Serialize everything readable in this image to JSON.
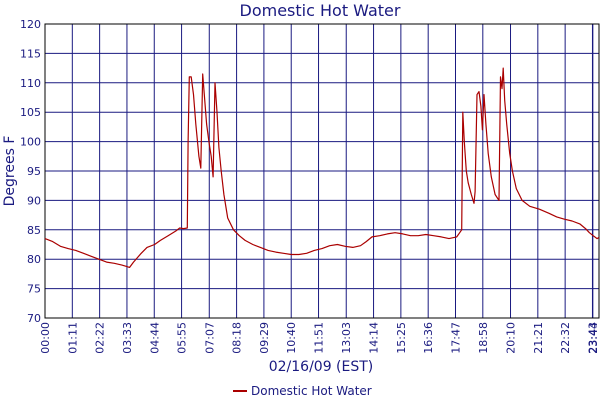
{
  "chart_data": {
    "type": "line",
    "title": "Domestic Hot Water",
    "xlabel": "02/16/09 (EST)",
    "ylabel": "Degrees F",
    "ylim": [
      70,
      120
    ],
    "xlim_minutes": [
      0,
      1440
    ],
    "y_ticks": [
      "70",
      "75",
      "80",
      "85",
      "90",
      "95",
      "100",
      "105",
      "110",
      "115",
      "120"
    ],
    "x_ticks": [
      {
        "label": "00:00",
        "minute": 0
      },
      {
        "label": "01:11",
        "minute": 71
      },
      {
        "label": "02:22",
        "minute": 142
      },
      {
        "label": "03:33",
        "minute": 213
      },
      {
        "label": "04:44",
        "minute": 284
      },
      {
        "label": "05:55",
        "minute": 355
      },
      {
        "label": "07:07",
        "minute": 427
      },
      {
        "label": "08:18",
        "minute": 498
      },
      {
        "label": "09:29",
        "minute": 569
      },
      {
        "label": "10:40",
        "minute": 640
      },
      {
        "label": "11:51",
        "minute": 711
      },
      {
        "label": "13:03",
        "minute": 783
      },
      {
        "label": "14:14",
        "minute": 854
      },
      {
        "label": "15:25",
        "minute": 925
      },
      {
        "label": "16:36",
        "minute": 996
      },
      {
        "label": "17:47",
        "minute": 1067
      },
      {
        "label": "18:58",
        "minute": 1138
      },
      {
        "label": "20:10",
        "minute": 1210
      },
      {
        "label": "21:21",
        "minute": 1281
      },
      {
        "label": "22:32",
        "minute": 1352
      },
      {
        "label": "23:43",
        "minute": 1423
      },
      {
        "label": "23:44",
        "minute": 1424
      }
    ],
    "grid": true,
    "legend": "bottom-center",
    "series": [
      {
        "name": "Domestic Hot Water",
        "color": "#aa0000",
        "points": [
          [
            0,
            83.5
          ],
          [
            20,
            83.0
          ],
          [
            40,
            82.2
          ],
          [
            60,
            81.8
          ],
          [
            80,
            81.5
          ],
          [
            100,
            81.0
          ],
          [
            120,
            80.5
          ],
          [
            140,
            80.0
          ],
          [
            160,
            79.5
          ],
          [
            180,
            79.3
          ],
          [
            200,
            79.0
          ],
          [
            220,
            78.6
          ],
          [
            230,
            79.5
          ],
          [
            250,
            81.0
          ],
          [
            265,
            82.0
          ],
          [
            285,
            82.5
          ],
          [
            300,
            83.2
          ],
          [
            320,
            84.0
          ],
          [
            340,
            84.8
          ],
          [
            350,
            85.3
          ],
          [
            360,
            85.2
          ],
          [
            370,
            85.3
          ],
          [
            372,
            100.0
          ],
          [
            375,
            111.0
          ],
          [
            380,
            111.0
          ],
          [
            386,
            108.0
          ],
          [
            392,
            103.0
          ],
          [
            400,
            97.5
          ],
          [
            405,
            95.5
          ],
          [
            410,
            111.5
          ],
          [
            414,
            108.0
          ],
          [
            420,
            103.0
          ],
          [
            426,
            100.0
          ],
          [
            432,
            97.5
          ],
          [
            437,
            94.0
          ],
          [
            442,
            110.0
          ],
          [
            447,
            105.0
          ],
          [
            452,
            99.0
          ],
          [
            458,
            95.0
          ],
          [
            465,
            91.0
          ],
          [
            475,
            87.0
          ],
          [
            490,
            85.0
          ],
          [
            505,
            84.0
          ],
          [
            520,
            83.2
          ],
          [
            540,
            82.5
          ],
          [
            560,
            82.0
          ],
          [
            580,
            81.5
          ],
          [
            600,
            81.2
          ],
          [
            620,
            81.0
          ],
          [
            640,
            80.8
          ],
          [
            660,
            80.8
          ],
          [
            680,
            81.0
          ],
          [
            700,
            81.5
          ],
          [
            720,
            81.8
          ],
          [
            740,
            82.3
          ],
          [
            760,
            82.5
          ],
          [
            780,
            82.2
          ],
          [
            800,
            82.0
          ],
          [
            820,
            82.3
          ],
          [
            835,
            83.0
          ],
          [
            850,
            83.8
          ],
          [
            870,
            84.0
          ],
          [
            890,
            84.3
          ],
          [
            910,
            84.5
          ],
          [
            930,
            84.3
          ],
          [
            950,
            84.0
          ],
          [
            970,
            84.0
          ],
          [
            990,
            84.2
          ],
          [
            1010,
            84.0
          ],
          [
            1030,
            83.8
          ],
          [
            1050,
            83.5
          ],
          [
            1070,
            83.8
          ],
          [
            1078,
            84.5
          ],
          [
            1083,
            85.0
          ],
          [
            1086,
            105.0
          ],
          [
            1090,
            100.0
          ],
          [
            1095,
            95.0
          ],
          [
            1100,
            93.0
          ],
          [
            1108,
            91.0
          ],
          [
            1115,
            89.5
          ],
          [
            1118,
            91.5
          ],
          [
            1123,
            108.0
          ],
          [
            1128,
            108.5
          ],
          [
            1133,
            106.0
          ],
          [
            1137,
            102.0
          ],
          [
            1141,
            108.0
          ],
          [
            1146,
            103.0
          ],
          [
            1152,
            98.0
          ],
          [
            1160,
            94.0
          ],
          [
            1170,
            91.0
          ],
          [
            1180,
            90.0
          ],
          [
            1184,
            111.0
          ],
          [
            1188,
            109.0
          ],
          [
            1191,
            112.5
          ],
          [
            1195,
            107.0
          ],
          [
            1200,
            103.0
          ],
          [
            1208,
            98.0
          ],
          [
            1215,
            95.0
          ],
          [
            1225,
            92.0
          ],
          [
            1240,
            90.0
          ],
          [
            1260,
            89.0
          ],
          [
            1285,
            88.5
          ],
          [
            1310,
            87.8
          ],
          [
            1330,
            87.2
          ],
          [
            1350,
            86.8
          ],
          [
            1370,
            86.5
          ],
          [
            1390,
            86.0
          ],
          [
            1405,
            85.2
          ],
          [
            1415,
            84.5
          ],
          [
            1425,
            84.0
          ],
          [
            1435,
            83.5
          ],
          [
            1440,
            83.7
          ]
        ]
      }
    ]
  }
}
